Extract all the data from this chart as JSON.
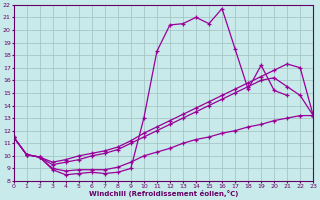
{
  "xlabel": "Windchill (Refroidissement éolien,°C)",
  "background_color": "#c8eaea",
  "grid_color": "#a0c0c0",
  "line_color": "#990099",
  "xlim": [
    0,
    23
  ],
  "ylim": [
    8,
    22
  ],
  "xticks": [
    0,
    1,
    2,
    3,
    4,
    5,
    6,
    7,
    8,
    9,
    10,
    11,
    12,
    13,
    14,
    15,
    16,
    17,
    18,
    19,
    20,
    21,
    22,
    23
  ],
  "yticks": [
    8,
    9,
    10,
    11,
    12,
    13,
    14,
    15,
    16,
    17,
    18,
    19,
    20,
    21,
    22
  ],
  "series1_x": [
    0,
    1,
    2,
    3,
    4,
    5,
    6,
    7,
    8,
    9,
    10,
    11,
    12,
    13,
    14,
    15,
    16,
    17,
    18,
    19,
    20,
    21
  ],
  "series1_y": [
    11.5,
    10.1,
    9.9,
    8.9,
    8.5,
    8.6,
    8.7,
    8.6,
    8.7,
    9.0,
    13.0,
    18.3,
    20.4,
    20.5,
    21.0,
    20.5,
    21.7,
    18.5,
    15.3,
    17.2,
    15.2,
    14.8
  ],
  "series2_x": [
    0,
    1,
    2,
    3,
    4,
    5,
    6,
    7,
    8,
    9,
    10,
    11,
    12,
    13,
    14,
    15,
    16,
    17,
    18,
    19,
    20,
    21,
    22,
    23
  ],
  "series2_y": [
    11.5,
    10.1,
    9.9,
    9.5,
    9.7,
    10.0,
    10.2,
    10.4,
    10.7,
    11.2,
    11.8,
    12.3,
    12.8,
    13.3,
    13.8,
    14.3,
    14.8,
    15.3,
    15.8,
    16.3,
    16.8,
    17.3,
    17.0,
    13.2
  ],
  "series3_x": [
    0,
    1,
    2,
    3,
    4,
    5,
    6,
    7,
    8,
    9,
    10,
    11,
    12,
    13,
    14,
    15,
    16,
    17,
    18,
    19,
    20,
    21,
    22,
    23
  ],
  "series3_y": [
    11.5,
    10.1,
    9.9,
    9.3,
    9.5,
    9.7,
    10.0,
    10.2,
    10.5,
    11.0,
    11.5,
    12.0,
    12.5,
    13.0,
    13.5,
    14.0,
    14.5,
    15.0,
    15.5,
    16.0,
    16.2,
    15.5,
    14.8,
    13.2
  ],
  "series4_x": [
    0,
    1,
    2,
    3,
    4,
    5,
    6,
    7,
    8,
    9,
    10,
    11,
    12,
    13,
    14,
    15,
    16,
    17,
    18,
    19,
    20,
    21,
    22,
    23
  ],
  "series4_y": [
    11.5,
    10.1,
    9.9,
    9.0,
    8.8,
    8.9,
    8.9,
    8.9,
    9.1,
    9.5,
    10.0,
    10.3,
    10.6,
    11.0,
    11.3,
    11.5,
    11.8,
    12.0,
    12.3,
    12.5,
    12.8,
    13.0,
    13.2,
    13.2
  ]
}
